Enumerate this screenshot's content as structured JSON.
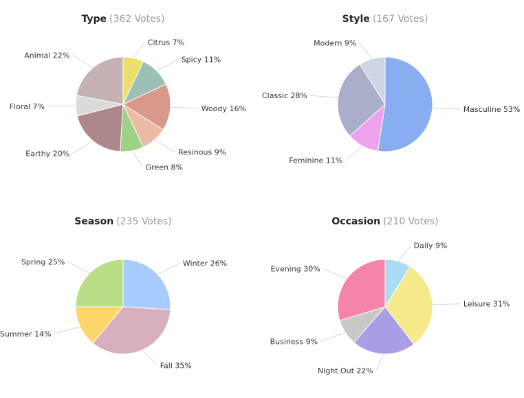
{
  "chart_data": [
    {
      "type": "pie",
      "title": "Type",
      "votes_text": "(362 Votes)",
      "slices": [
        {
          "label": "Citrus 7%",
          "value": 7,
          "color": "#eae069"
        },
        {
          "label": "Spicy 11%",
          "value": 11,
          "color": "#9cbfb6"
        },
        {
          "label": "Woody 16%",
          "value": 16,
          "color": "#d9998a"
        },
        {
          "label": "Resinous 9%",
          "value": 9,
          "color": "#ebbba3"
        },
        {
          "label": "Green 8%",
          "value": 8,
          "color": "#9dd286"
        },
        {
          "label": "Earthy 20%",
          "value": 20,
          "color": "#ad878a"
        },
        {
          "label": "Floral 7%",
          "value": 7,
          "color": "#dadada"
        },
        {
          "label": "Animal 22%",
          "value": 22,
          "color": "#c5b3b3"
        }
      ]
    },
    {
      "type": "pie",
      "title": "Style",
      "votes_text": "(167 Votes)",
      "slices": [
        {
          "label": "Masculine 53%",
          "value": 53,
          "color": "#88adf0"
        },
        {
          "label": "Feminine 11%",
          "value": 11,
          "color": "#eda2ee"
        },
        {
          "label": "Classic 28%",
          "value": 28,
          "color": "#abaec8"
        },
        {
          "label": "Modern 9%",
          "value": 9,
          "color": "#cdd5e6"
        }
      ]
    },
    {
      "type": "pie",
      "title": "Season",
      "votes_text": "(235 Votes)",
      "slices": [
        {
          "label": "Winter 26%",
          "value": 26,
          "color": "#a9ccfe"
        },
        {
          "label": "Fall 35%",
          "value": 35,
          "color": "#d8afbd"
        },
        {
          "label": "Summer 14%",
          "value": 14,
          "color": "#fed66a"
        },
        {
          "label": "Spring 25%",
          "value": 25,
          "color": "#bade85"
        }
      ]
    },
    {
      "type": "pie",
      "title": "Occasion",
      "votes_text": "(210 Votes)",
      "slices": [
        {
          "label": "Daily 9%",
          "value": 9,
          "color": "#a9dcf2"
        },
        {
          "label": "Leisure 31%",
          "value": 31,
          "color": "#f5e98a"
        },
        {
          "label": "Night Out 22%",
          "value": 22,
          "color": "#a79ee6"
        },
        {
          "label": "Business 9%",
          "value": 9,
          "color": "#c8c8c8"
        },
        {
          "label": "Evening 30%",
          "value": 30,
          "color": "#f484a9"
        }
      ]
    }
  ]
}
